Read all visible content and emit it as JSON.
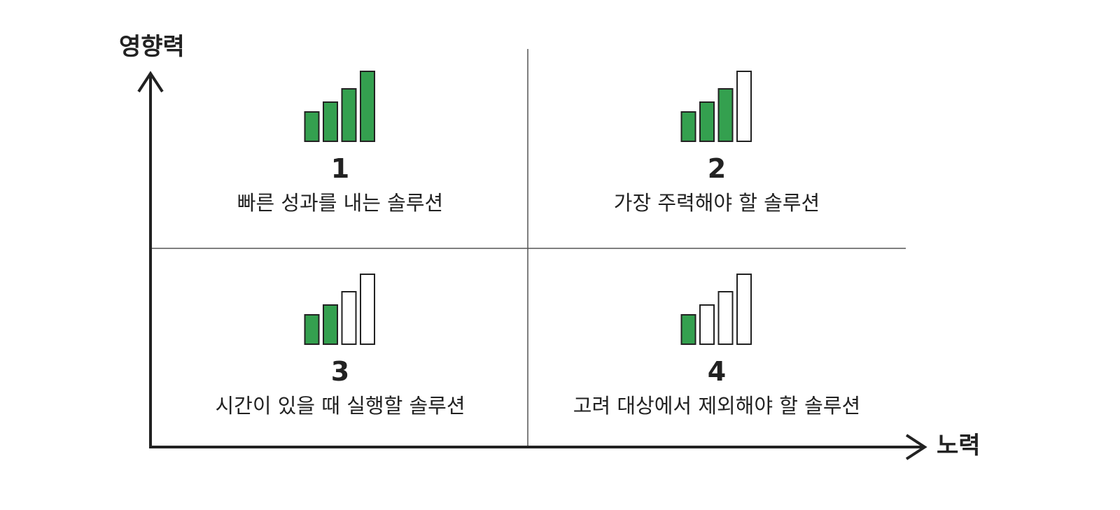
{
  "axes": {
    "y_label": "영향력",
    "x_label": "노력"
  },
  "colors": {
    "bar_fill": "#34a04f",
    "bar_stroke": "#222222",
    "axis": "#222222",
    "grid": "#555555"
  },
  "quadrants": [
    {
      "number": "1",
      "label": "빠른 성과를 내는 솔루션",
      "filled_bars": 4,
      "total_bars": 4
    },
    {
      "number": "2",
      "label": "가장 주력해야 할 솔루션",
      "filled_bars": 3,
      "total_bars": 4
    },
    {
      "number": "3",
      "label": "시간이 있을 때 실행할 솔루션",
      "filled_bars": 2,
      "total_bars": 4
    },
    {
      "number": "4",
      "label": "고려 대상에서 제외해야 할 솔루션",
      "filled_bars": 1,
      "total_bars": 4
    }
  ]
}
